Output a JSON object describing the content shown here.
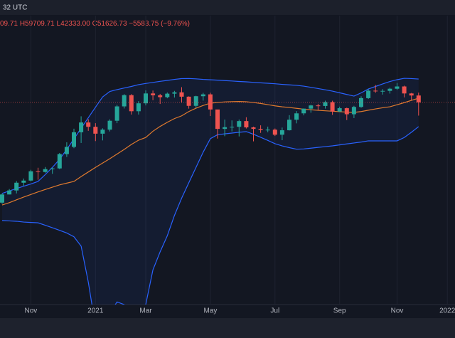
{
  "header": {
    "time": "32 UTC",
    "open": "09.71",
    "high": "H59709.71",
    "low": "L42333.00",
    "close": "C51626.73",
    "change": "−5583.75 (−9.76%)"
  },
  "chart_data": {
    "type": "candlestick",
    "log_scale": true,
    "ylim": [
      2500,
      148000
    ],
    "up_color": "#26a69a",
    "down_color": "#ef5350",
    "band_color": "#2962ff",
    "basis_color": "#e07a2e",
    "categories": [
      null,
      null,
      null,
      null,
      "Nov",
      null,
      null,
      null,
      null,
      null,
      null,
      null,
      null,
      "2021",
      null,
      null,
      null,
      null,
      null,
      null,
      "Mar",
      null,
      null,
      null,
      null,
      null,
      null,
      null,
      null,
      "May",
      null,
      null,
      null,
      null,
      null,
      null,
      null,
      null,
      "Jul",
      null,
      null,
      null,
      null,
      null,
      null,
      null,
      null,
      "Sep",
      null,
      null,
      null,
      null,
      null,
      null,
      null,
      "Nov",
      null,
      null,
      null,
      null,
      null,
      null,
      "2022"
    ],
    "open": [
      11500,
      13000,
      13800,
      15500,
      16000,
      18400,
      18200,
      19000,
      19200,
      23800,
      26500,
      33000,
      38200,
      35800,
      32300,
      34300,
      39200,
      48600,
      57500,
      45200,
      50900,
      59000,
      57400,
      55800,
      58800,
      60000,
      56200,
      49000,
      56600,
      58200,
      46400,
      34700,
      35600,
      35800,
      39000,
      35500,
      34700,
      34200,
      34300,
      31800,
      34000,
      39800,
      43800,
      47000,
      49300,
      48900,
      51800,
      45000,
      47300,
      43200,
      48200,
      55000,
      61500,
      61300,
      61300,
      63300,
      65500,
      59000,
      57210.48,
      null,
      null,
      null,
      null
    ],
    "high": [
      13200,
      14100,
      15900,
      16500,
      18800,
      19400,
      19600,
      19400,
      24200,
      28400,
      34800,
      41900,
      40100,
      37800,
      35000,
      40000,
      49700,
      58400,
      58400,
      52600,
      61800,
      61600,
      58600,
      59800,
      61300,
      64800,
      56500,
      57000,
      59500,
      59600,
      45800,
      39900,
      39400,
      39900,
      41300,
      35900,
      36600,
      35900,
      34900,
      35400,
      42600,
      45300,
      47100,
      49800,
      50500,
      52900,
      52900,
      48400,
      47700,
      49000,
      56500,
      62900,
      67000,
      62900,
      64300,
      69000,
      66300,
      59500,
      59709.71,
      null,
      null,
      null,
      null
    ],
    "low": [
      11300,
      13000,
      13200,
      14800,
      15800,
      16200,
      18000,
      17700,
      19000,
      22800,
      26000,
      28100,
      33700,
      28900,
      29200,
      33400,
      37800,
      47100,
      43000,
      43000,
      49300,
      53300,
      50400,
      54900,
      55500,
      51500,
      47000,
      47600,
      53000,
      42100,
      30000,
      31100,
      33400,
      31000,
      34900,
      28800,
      32700,
      33000,
      31200,
      29300,
      33900,
      37700,
      42500,
      44200,
      46100,
      47000,
      42800,
      44700,
      39600,
      40800,
      47600,
      54300,
      59600,
      58000,
      58900,
      62300,
      55600,
      53300,
      42333,
      null,
      null,
      null,
      null
    ],
    "close": [
      13000,
      13800,
      15500,
      16000,
      18400,
      18200,
      19000,
      19200,
      23800,
      26500,
      33000,
      38200,
      35800,
      32300,
      34300,
      39200,
      48600,
      57500,
      45200,
      50900,
      59000,
      57400,
      55800,
      58800,
      60000,
      56200,
      49000,
      56600,
      58200,
      46400,
      34700,
      35600,
      35800,
      39000,
      35500,
      34700,
      34200,
      34300,
      31800,
      34000,
      39800,
      43800,
      47000,
      49300,
      48900,
      51800,
      45000,
      47300,
      43200,
      48200,
      55000,
      61500,
      61300,
      61300,
      63300,
      65500,
      59000,
      57210.48,
      51626.73,
      null,
      null,
      null,
      null
    ],
    "upper": [
      13200,
      13700,
      14200,
      14700,
      15200,
      15800,
      17500,
      19500,
      22000,
      25500,
      29900,
      35000,
      41000,
      48000,
      56000,
      60800,
      62500,
      64000,
      65500,
      67300,
      68500,
      69600,
      70700,
      71700,
      72800,
      73700,
      73800,
      73400,
      72800,
      72400,
      72000,
      71500,
      71100,
      70600,
      70200,
      69700,
      69200,
      68700,
      68200,
      67600,
      67100,
      66600,
      65800,
      64700,
      63500,
      62300,
      61100,
      59600,
      58100,
      56700,
      59500,
      63100,
      65500,
      68000,
      70500,
      72500,
      74000,
      73700,
      73200,
      null,
      null,
      null,
      null
    ],
    "basis": [
      11100,
      11500,
      12000,
      12500,
      13000,
      13500,
      14000,
      14500,
      15000,
      15400,
      15800,
      17000,
      18200,
      19500,
      20800,
      22200,
      23800,
      25500,
      27500,
      29300,
      30500,
      33500,
      36000,
      38300,
      40500,
      42200,
      45000,
      47300,
      49300,
      51000,
      51500,
      52000,
      52200,
      52300,
      52100,
      51500,
      50800,
      49900,
      49000,
      48300,
      47800,
      47200,
      46600,
      46200,
      45800,
      45500,
      45200,
      44900,
      44600,
      44400,
      45000,
      45900,
      46800,
      47600,
      48300,
      49800,
      51400,
      53200,
      55000,
      null,
      null,
      null,
      null
    ],
    "lower": [
      8800,
      8750,
      8700,
      8600,
      8550,
      8500,
      8200,
      7900,
      7600,
      7300,
      6900,
      6000,
      3500,
      1800,
      1900,
      2200,
      2600,
      2500,
      2200,
      2100,
      2500,
      4200,
      5500,
      7000,
      9500,
      12300,
      15500,
      19500,
      24500,
      30000,
      31800,
      32200,
      32600,
      33000,
      33300,
      32000,
      30600,
      29200,
      27800,
      26900,
      26200,
      25600,
      25700,
      26000,
      26300,
      26600,
      26900,
      27300,
      27700,
      28100,
      28500,
      29000,
      29000,
      29000,
      29000,
      29000,
      30500,
      33000,
      35900,
      null,
      null,
      null,
      null
    ]
  }
}
